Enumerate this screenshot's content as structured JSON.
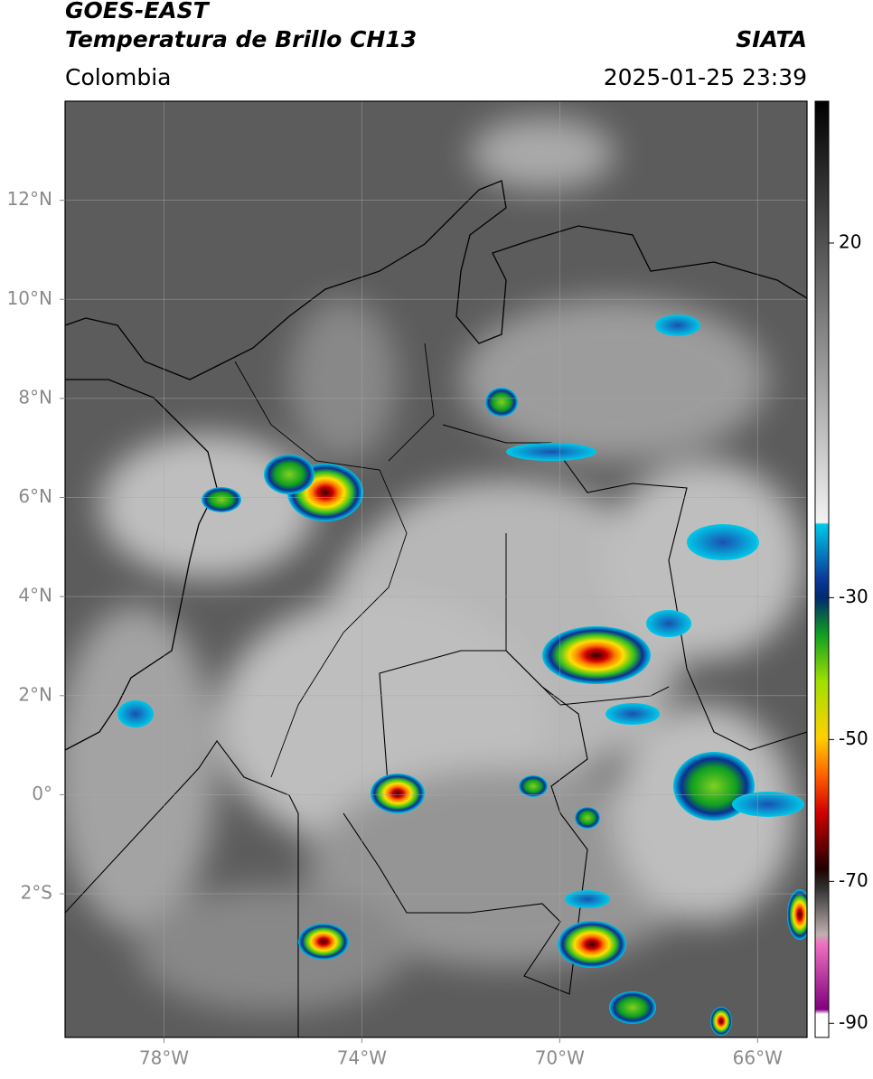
{
  "header": {
    "title": "GOES-EAST",
    "subtitle": "Temperatura de Brillo CH13",
    "source": "SIATA",
    "region": "Colombia",
    "datetime": "2025-01-25 23:39"
  },
  "map": {
    "xlim": [
      -80,
      -65
    ],
    "ylim": [
      -4.9,
      14
    ],
    "yticks": [
      {
        "value": 12,
        "label": "12°N"
      },
      {
        "value": 10,
        "label": "10°N"
      },
      {
        "value": 8,
        "label": "8°N"
      },
      {
        "value": 6,
        "label": "6°N"
      },
      {
        "value": 4,
        "label": "4°N"
      },
      {
        "value": 2,
        "label": "2°N"
      },
      {
        "value": 0,
        "label": "0°"
      },
      {
        "value": -2,
        "label": "2°S"
      }
    ],
    "xticks": [
      {
        "value": -78,
        "label": "78°W"
      },
      {
        "value": -74,
        "label": "74°W"
      },
      {
        "value": -70,
        "label": "70°W"
      },
      {
        "value": -66,
        "label": "66°W"
      }
    ]
  },
  "colorbar": {
    "lim": [
      -92,
      40
    ],
    "ticks": [
      20,
      -30,
      -50,
      -70,
      -90
    ]
  }
}
